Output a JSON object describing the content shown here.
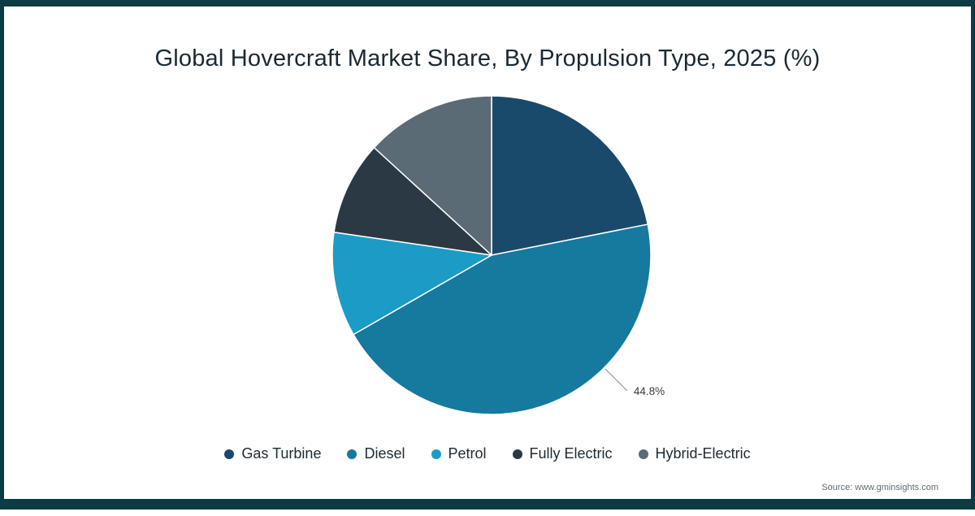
{
  "title": "Global Hovercraft Market Share, By Propulsion Type, 2025 (%)",
  "source": "Source: www.gminsights.com",
  "frame": {
    "border_color": "#0d3b44",
    "background": "#ffffff"
  },
  "chart_data": {
    "type": "pie",
    "title": "Global Hovercraft Market Share, By Propulsion Type, 2025 (%)",
    "start_angle_deg": 0,
    "direction": "clockwise",
    "legend_position": "bottom",
    "slices": [
      {
        "label": "Gas Turbine",
        "value": 21.9,
        "color": "#1a4a6b"
      },
      {
        "label": "Diesel",
        "value": 44.8,
        "color": "#16799e",
        "data_label": "44.8%",
        "data_label_angle_deg": 135
      },
      {
        "label": "Petrol",
        "value": 10.6,
        "color": "#1b9cc6"
      },
      {
        "label": "Fully Electric",
        "value": 9.5,
        "color": "#2b3944"
      },
      {
        "label": "Hybrid-Electric",
        "value": 13.2,
        "color": "#5b6b75"
      }
    ],
    "data_label_color": "#3d3d3d",
    "leader_line_color": "#8f8f8f",
    "slice_border_color": "#ffffff"
  }
}
